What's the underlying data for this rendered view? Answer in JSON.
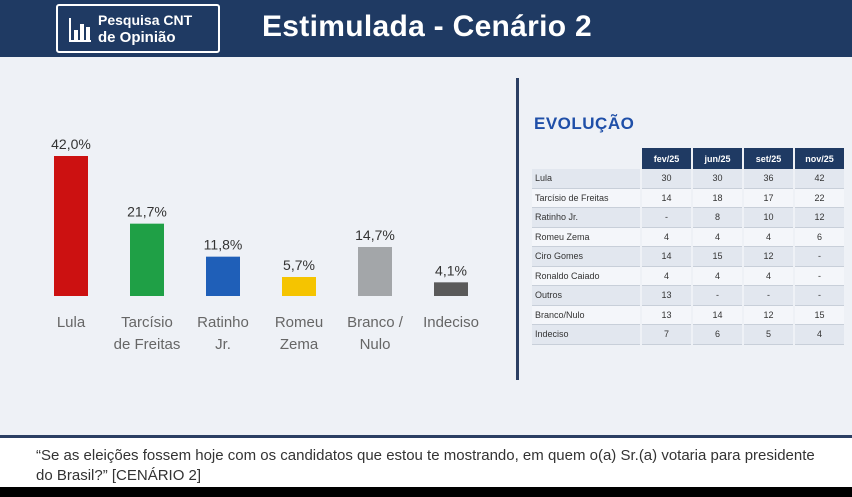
{
  "header": {
    "logo_line1": "Pesquisa CNT",
    "logo_line2": "de Opinião",
    "title": "Estimulada - Cenário 2"
  },
  "chart_data": {
    "type": "bar",
    "categories": [
      [
        "Lula"
      ],
      [
        "Tarcísio",
        "de Freitas"
      ],
      [
        "Ratinho",
        "Jr."
      ],
      [
        "Romeu",
        "Zema"
      ],
      [
        "Branco /",
        "Nulo"
      ],
      [
        "Indeciso"
      ]
    ],
    "values": [
      42.0,
      21.7,
      11.8,
      5.7,
      14.7,
      4.1
    ],
    "value_labels": [
      "42,0%",
      "21,7%",
      "11,8%",
      "5,7%",
      "14,7%",
      "4,1%"
    ],
    "colors": [
      "#cc1111",
      "#1fa046",
      "#1f5fb8",
      "#f5c400",
      "#a3a6a9",
      "#5a5a5a"
    ],
    "ylim": [
      0,
      42
    ]
  },
  "evolution": {
    "title": "EVOLUÇÃO",
    "columns": [
      "fev/25",
      "jun/25",
      "set/25",
      "nov/25"
    ],
    "rows": [
      {
        "name": "Lula",
        "values": [
          "30",
          "30",
          "36",
          "42"
        ]
      },
      {
        "name": "Tarcísio de Freitas",
        "values": [
          "14",
          "18",
          "17",
          "22"
        ]
      },
      {
        "name": "Ratinho Jr.",
        "values": [
          "-",
          "8",
          "10",
          "12"
        ]
      },
      {
        "name": "Romeu Zema",
        "values": [
          "4",
          "4",
          "4",
          "6"
        ]
      },
      {
        "name": "Ciro Gomes",
        "values": [
          "14",
          "15",
          "12",
          "-"
        ]
      },
      {
        "name": "Ronaldo Caiado",
        "values": [
          "4",
          "4",
          "4",
          "-"
        ]
      },
      {
        "name": "Outros",
        "values": [
          "13",
          "-",
          "-",
          "-"
        ]
      },
      {
        "name": "Branco/Nulo",
        "values": [
          "13",
          "14",
          "12",
          "15"
        ]
      },
      {
        "name": "Indeciso",
        "values": [
          "7",
          "6",
          "5",
          "4"
        ]
      }
    ]
  },
  "footer": {
    "question": "“Se as eleições fossem hoje com os candidatos que estou te mostrando, em quem o(a) Sr.(a) votaria para presidente do Brasil?” [CENÁRIO 2]"
  }
}
